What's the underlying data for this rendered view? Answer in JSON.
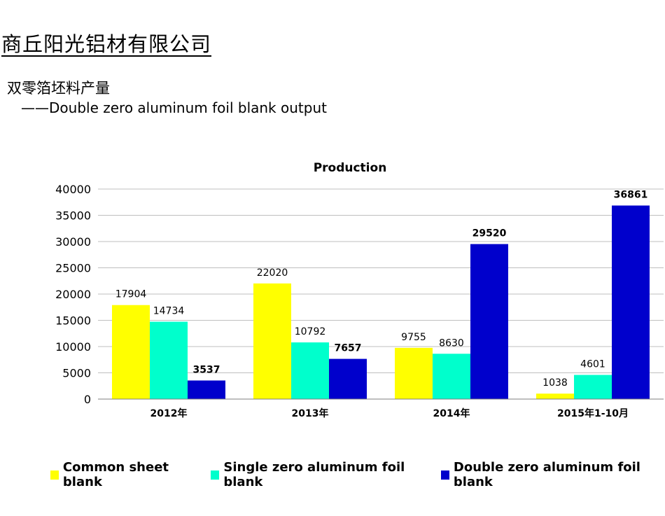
{
  "header": {
    "company": "商丘阳光铝材有限公司",
    "subtitle_cn": "双零箔坯料产量",
    "subtitle_en": "——Double zero aluminum foil blank output"
  },
  "chart_data": {
    "type": "bar",
    "title": "Production",
    "categories": [
      "2012年",
      "2013年",
      "2014年",
      "2015年1-10月"
    ],
    "series": [
      {
        "name": "Common sheet blank",
        "color": "#FFFF00",
        "values": [
          17904,
          22020,
          9755,
          1038
        ],
        "bold_labels": false
      },
      {
        "name": "Single zero aluminum foil blank",
        "color": "#00FFCC",
        "values": [
          14734,
          10792,
          8630,
          4601
        ],
        "bold_labels": false
      },
      {
        "name": "Double zero aluminum foil blank",
        "color": "#0000CC",
        "values": [
          3537,
          7657,
          29520,
          36861
        ],
        "bold_labels": true
      }
    ],
    "ylim": [
      0,
      40000
    ],
    "yticks": [
      0,
      5000,
      10000,
      15000,
      20000,
      25000,
      30000,
      35000,
      40000
    ],
    "grid": true,
    "legend_position": "bottom",
    "xlabel": "",
    "ylabel": ""
  }
}
